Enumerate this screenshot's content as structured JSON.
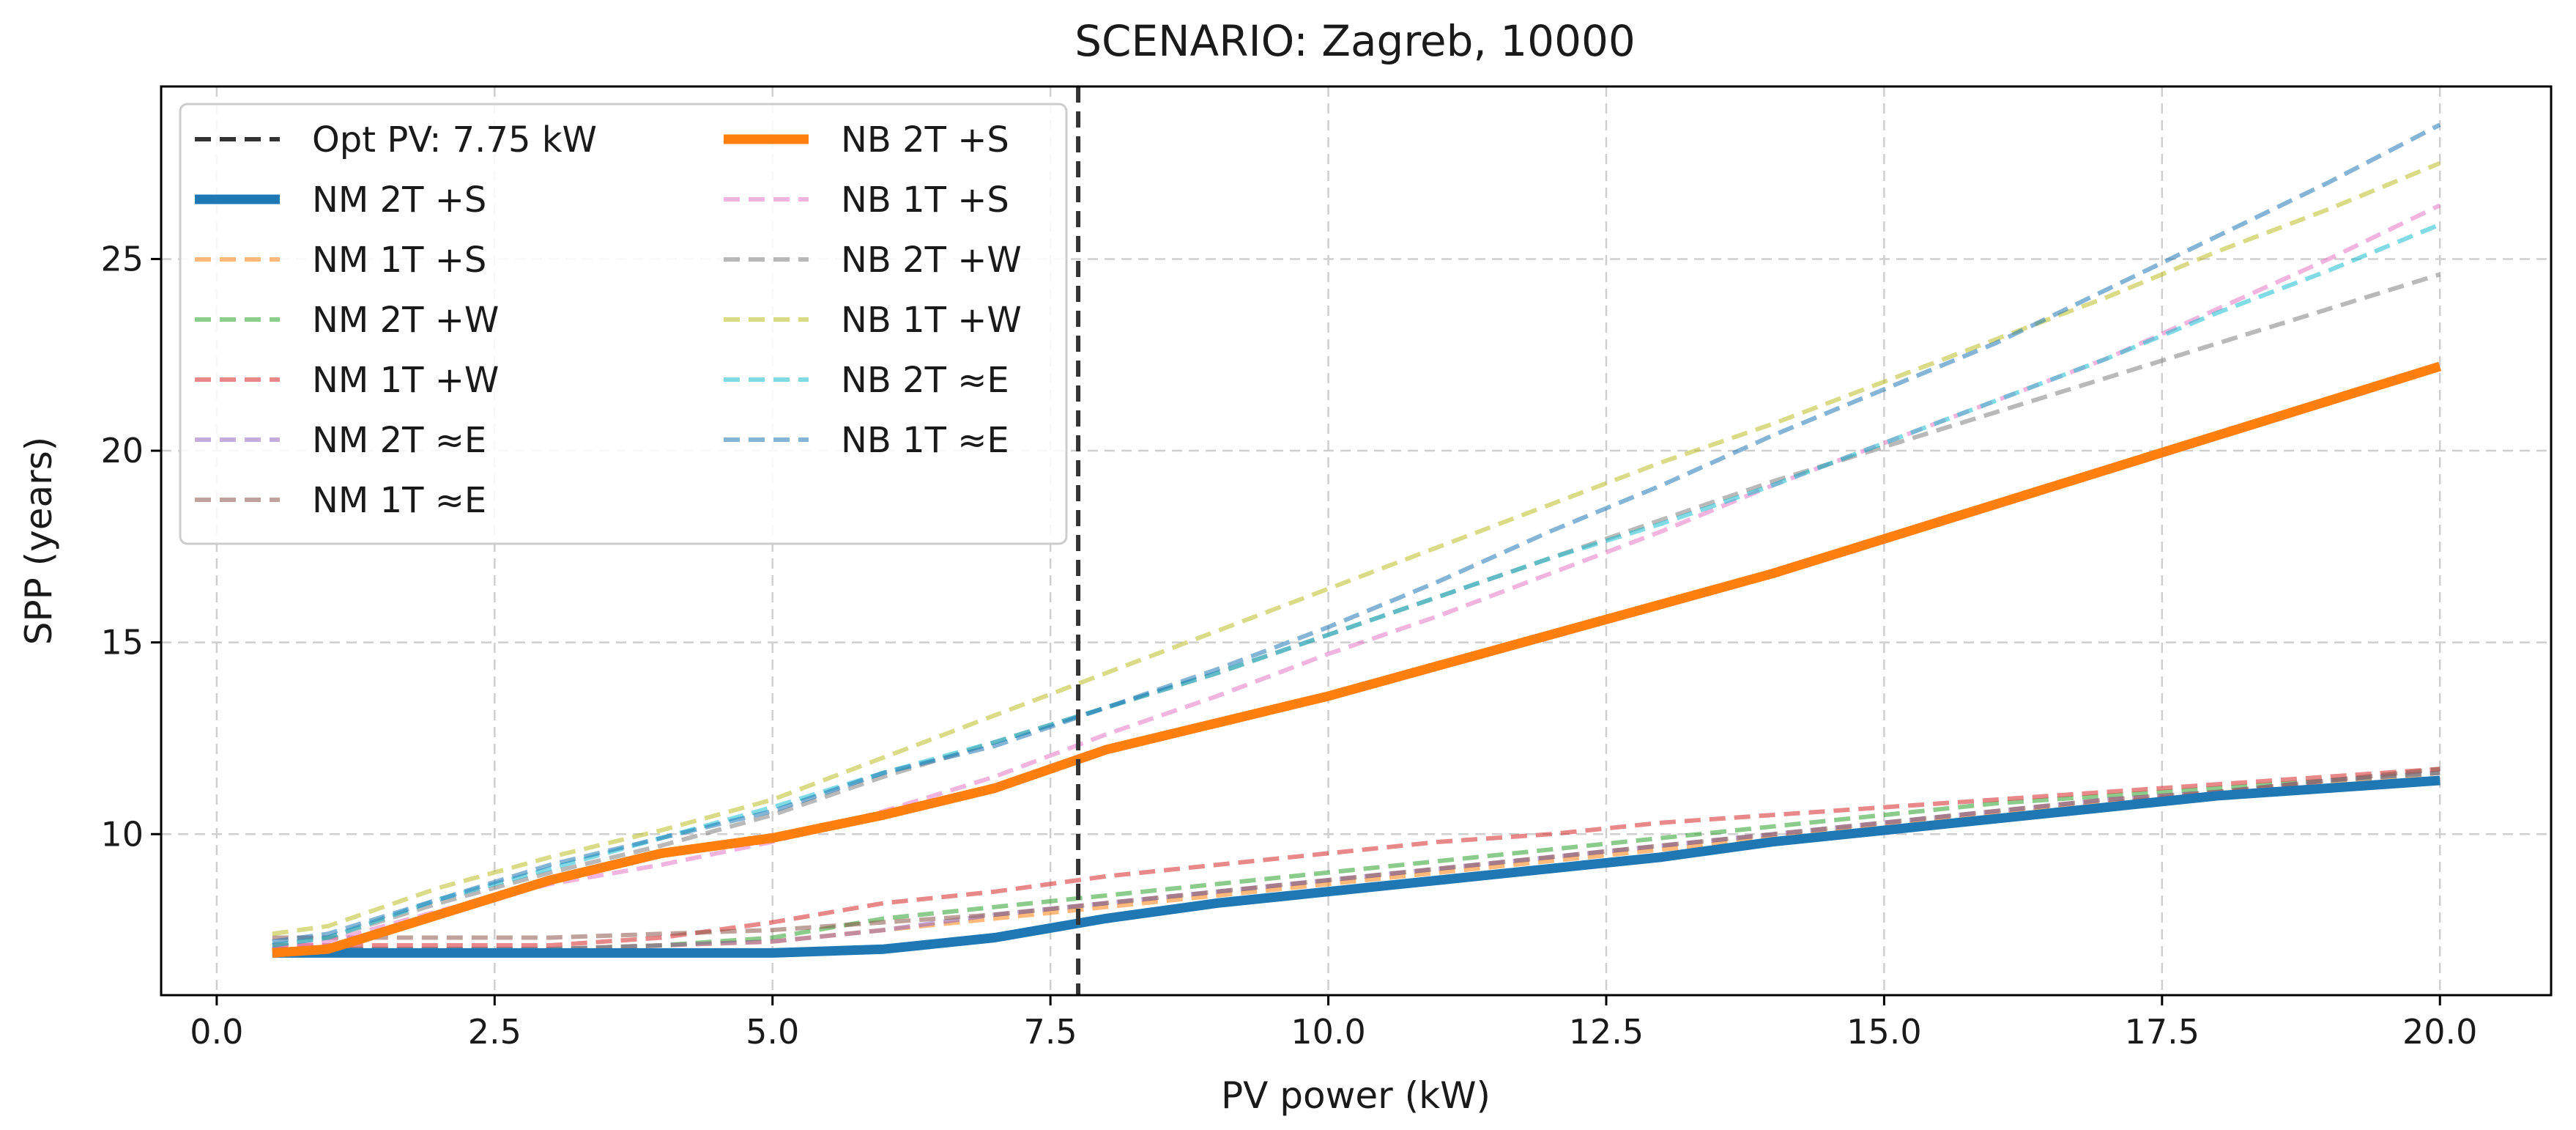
{
  "chart_data": {
    "type": "line",
    "title": "SCENARIO: Zagreb, 10000",
    "xlabel": "PV power (kW)",
    "ylabel": "SPP (years)",
    "xlim": [
      -0.5,
      21.0
    ],
    "ylim": [
      5.8,
      29.5
    ],
    "xticks": [
      0.0,
      2.5,
      5.0,
      7.5,
      10.0,
      12.5,
      15.0,
      17.5,
      20.0
    ],
    "xtick_labels": [
      "0.0",
      "2.5",
      "5.0",
      "7.5",
      "10.0",
      "12.5",
      "15.0",
      "17.5",
      "20.0"
    ],
    "yticks": [
      10,
      15,
      20,
      25
    ],
    "ytick_labels": [
      "10",
      "15",
      "20",
      "25"
    ],
    "grid": true,
    "legend_position": "top-left",
    "legend_columns": 2,
    "vline": {
      "x": 7.75,
      "label": "Opt PV: 7.75 kW",
      "color": "#333333",
      "style": "dashed"
    },
    "x": [
      0.5,
      1.0,
      2.0,
      3.0,
      4.0,
      5.0,
      6.0,
      7.0,
      8.0,
      9.0,
      10.0,
      11.0,
      12.0,
      13.0,
      14.0,
      15.0,
      16.0,
      17.0,
      18.0,
      19.0,
      20.0
    ],
    "series": [
      {
        "name": "NM 2T +S",
        "color": "#1f77b4",
        "style": "solid",
        "emphasis": true,
        "values": [
          6.9,
          6.9,
          6.9,
          6.9,
          6.9,
          6.9,
          7.0,
          7.3,
          7.8,
          8.2,
          8.5,
          8.8,
          9.1,
          9.4,
          9.8,
          10.1,
          10.4,
          10.7,
          11.0,
          11.2,
          11.4
        ]
      },
      {
        "name": "NM 1T +S",
        "color": "#ff7f0e",
        "style": "dashed",
        "emphasis": false,
        "values": [
          7.0,
          7.0,
          7.0,
          7.0,
          7.1,
          7.2,
          7.5,
          7.8,
          8.1,
          8.4,
          8.7,
          9.0,
          9.3,
          9.6,
          9.9,
          10.2,
          10.5,
          10.8,
          11.1,
          11.3,
          11.6
        ]
      },
      {
        "name": "NM 2T +W",
        "color": "#2ca02c",
        "style": "dashed",
        "emphasis": false,
        "values": [
          7.0,
          7.0,
          7.0,
          7.0,
          7.1,
          7.3,
          7.8,
          8.1,
          8.4,
          8.7,
          9.0,
          9.3,
          9.6,
          9.9,
          10.2,
          10.5,
          10.8,
          11.0,
          11.2,
          11.4,
          11.6
        ]
      },
      {
        "name": "NM 1T +W",
        "color": "#d62728",
        "style": "dashed",
        "emphasis": false,
        "values": [
          7.1,
          7.1,
          7.1,
          7.1,
          7.3,
          7.7,
          8.2,
          8.5,
          8.9,
          9.2,
          9.5,
          9.8,
          10.0,
          10.3,
          10.5,
          10.7,
          10.9,
          11.1,
          11.3,
          11.5,
          11.7
        ]
      },
      {
        "name": "NM 2T ≈E",
        "color": "#9467bd",
        "style": "dashed",
        "emphasis": false,
        "values": [
          7.0,
          7.0,
          7.0,
          7.0,
          7.1,
          7.2,
          7.5,
          7.9,
          8.2,
          8.5,
          8.8,
          9.1,
          9.4,
          9.7,
          10.0,
          10.3,
          10.6,
          10.9,
          11.1,
          11.4,
          11.6
        ]
      },
      {
        "name": "NM 1T ≈E",
        "color": "#8c564b",
        "style": "dashed",
        "emphasis": false,
        "values": [
          7.3,
          7.3,
          7.3,
          7.3,
          7.4,
          7.5,
          7.7,
          7.9,
          8.2,
          8.5,
          8.8,
          9.1,
          9.4,
          9.7,
          10.0,
          10.3,
          10.6,
          10.9,
          11.1,
          11.4,
          11.7
        ]
      },
      {
        "name": "NB 2T +S",
        "color": "#ff7f0e",
        "style": "solid",
        "emphasis": true,
        "values": [
          6.9,
          7.0,
          7.9,
          8.8,
          9.5,
          9.9,
          10.5,
          11.2,
          12.2,
          12.9,
          13.6,
          14.4,
          15.2,
          16.0,
          16.8,
          17.7,
          18.6,
          19.5,
          20.4,
          21.3,
          22.2
        ]
      },
      {
        "name": "NB 1T +S",
        "color": "#e377c2",
        "style": "dashed",
        "emphasis": false,
        "values": [
          7.0,
          7.2,
          8.0,
          8.7,
          9.2,
          9.8,
          10.6,
          11.5,
          12.6,
          13.6,
          14.7,
          15.7,
          16.8,
          17.9,
          19.1,
          20.2,
          21.3,
          22.4,
          23.7,
          25.0,
          26.4
        ]
      },
      {
        "name": "NB 2T +W",
        "color": "#7f7f7f",
        "style": "dashed",
        "emphasis": false,
        "values": [
          7.1,
          7.3,
          8.2,
          9.0,
          9.7,
          10.5,
          11.5,
          12.4,
          13.3,
          14.2,
          15.2,
          16.2,
          17.2,
          18.2,
          19.2,
          20.1,
          21.0,
          21.9,
          22.8,
          23.7,
          24.6
        ]
      },
      {
        "name": "NB 1T +W",
        "color": "#bcbd22",
        "style": "dashed",
        "emphasis": false,
        "values": [
          7.4,
          7.6,
          8.6,
          9.4,
          10.1,
          10.9,
          12.0,
          13.1,
          14.2,
          15.3,
          16.4,
          17.5,
          18.6,
          19.7,
          20.7,
          21.8,
          22.9,
          24.0,
          25.2,
          26.3,
          27.5
        ]
      },
      {
        "name": "NB 2T ≈E",
        "color": "#17becf",
        "style": "dashed",
        "emphasis": false,
        "values": [
          7.1,
          7.3,
          8.3,
          9.1,
          9.9,
          10.7,
          11.6,
          12.4,
          13.3,
          14.2,
          15.2,
          16.2,
          17.2,
          18.1,
          19.1,
          20.2,
          21.3,
          22.4,
          23.6,
          24.7,
          25.9
        ]
      },
      {
        "name": "NB 1T ≈E",
        "color": "#1f77b4",
        "style": "dashed",
        "emphasis": false,
        "values": [
          7.2,
          7.4,
          8.3,
          9.2,
          9.9,
          10.6,
          11.6,
          12.3,
          13.3,
          14.3,
          15.4,
          16.6,
          17.9,
          19.1,
          20.4,
          21.6,
          22.8,
          24.2,
          25.6,
          27.0,
          28.5
        ]
      }
    ]
  }
}
